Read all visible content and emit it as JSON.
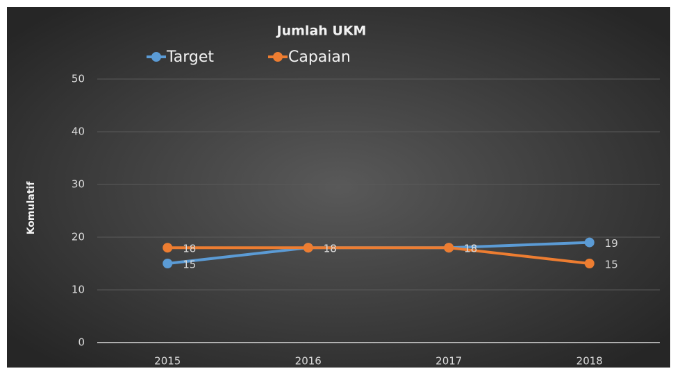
{
  "chart_data": {
    "type": "line",
    "title": "Jumlah UKM",
    "ylabel": "Komulatif",
    "categories": [
      "2015",
      "2016",
      "2017",
      "2018"
    ],
    "series": [
      {
        "name": "Target",
        "color": "#5b9bd5",
        "values": [
          15,
          18,
          18,
          19
        ]
      },
      {
        "name": "Capaian",
        "color": "#ed7d31",
        "values": [
          18,
          18,
          18,
          15
        ]
      }
    ],
    "ylim": [
      0,
      50
    ],
    "yticks": [
      0,
      10,
      20,
      30,
      40,
      50
    ],
    "grid": true,
    "legend": "top"
  }
}
